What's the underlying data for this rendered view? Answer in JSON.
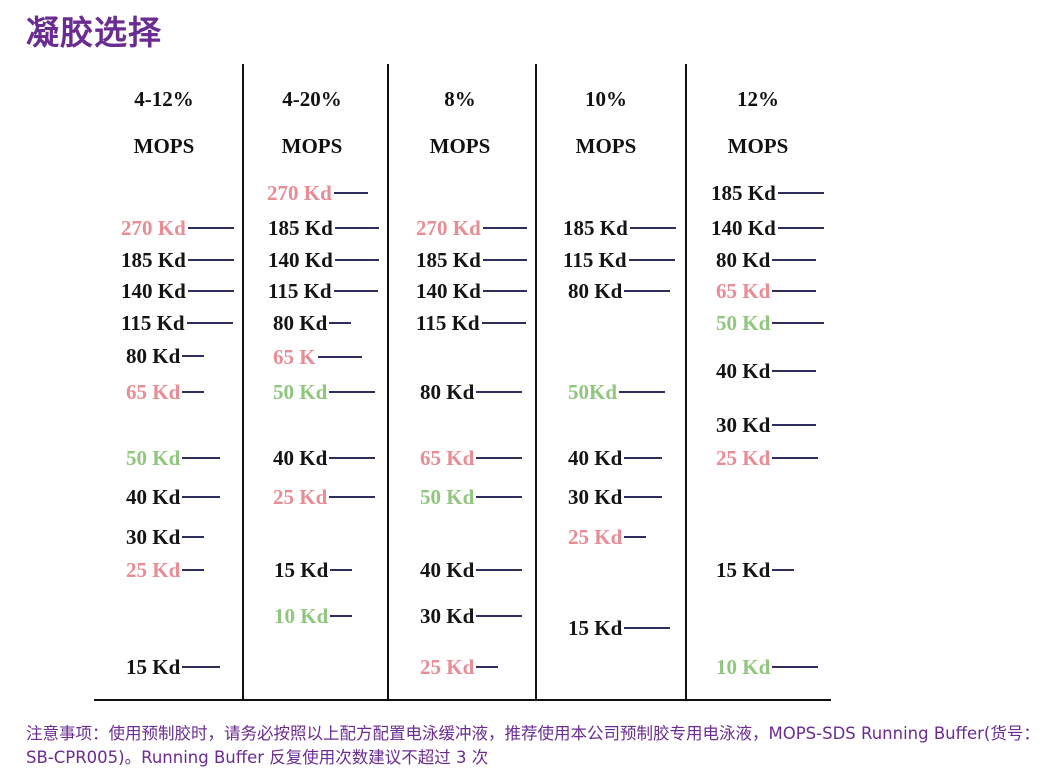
{
  "title": "凝胶选择",
  "columns": [
    {
      "header": "4-12%",
      "type": "MOPS",
      "markers": [
        {
          "label": "270 Kd",
          "color": "pink"
        },
        {
          "label": "185 Kd",
          "color": "black"
        },
        {
          "label": "140 Kd",
          "color": "black"
        },
        {
          "label": "115 Kd",
          "color": "black"
        },
        {
          "label": "80 Kd",
          "color": "black"
        },
        {
          "label": "65 Kd",
          "color": "pink"
        },
        {
          "label": "50 Kd",
          "color": "green"
        },
        {
          "label": "40 Kd",
          "color": "black"
        },
        {
          "label": "30 Kd",
          "color": "black"
        },
        {
          "label": "25 Kd",
          "color": "pink"
        },
        {
          "label": "15 Kd",
          "color": "black"
        }
      ]
    },
    {
      "header": "4-20%",
      "type": "MOPS",
      "markers": [
        {
          "label": "270 Kd",
          "color": "pink"
        },
        {
          "label": "185 Kd",
          "color": "black"
        },
        {
          "label": "140 Kd",
          "color": "black"
        },
        {
          "label": "115 Kd",
          "color": "black"
        },
        {
          "label": "80 Kd",
          "color": "black"
        },
        {
          "label": "65 K",
          "color": "pink"
        },
        {
          "label": "50 Kd",
          "color": "green"
        },
        {
          "label": "40 Kd",
          "color": "black"
        },
        {
          "label": "25 Kd",
          "color": "pink"
        },
        {
          "label": "15 Kd",
          "color": "black"
        },
        {
          "label": "10 Kd",
          "color": "green"
        }
      ]
    },
    {
      "header": "8%",
      "type": "MOPS",
      "markers": [
        {
          "label": "270 Kd",
          "color": "pink"
        },
        {
          "label": "185 Kd",
          "color": "black"
        },
        {
          "label": "140 Kd",
          "color": "black"
        },
        {
          "label": "115 Kd",
          "color": "black"
        },
        {
          "label": "80 Kd",
          "color": "black"
        },
        {
          "label": "65 Kd",
          "color": "pink"
        },
        {
          "label": "50 Kd",
          "color": "green"
        },
        {
          "label": "40 Kd",
          "color": "black"
        },
        {
          "label": "30 Kd",
          "color": "black"
        },
        {
          "label": "25 Kd",
          "color": "pink"
        }
      ]
    },
    {
      "header": "10%",
      "type": "MOPS",
      "markers": [
        {
          "label": "185 Kd",
          "color": "black"
        },
        {
          "label": "115 Kd",
          "color": "black"
        },
        {
          "label": "80 Kd",
          "color": "black"
        },
        {
          "label": "50Kd",
          "color": "green"
        },
        {
          "label": "40 Kd",
          "color": "black"
        },
        {
          "label": "30 Kd",
          "color": "black"
        },
        {
          "label": "25 Kd",
          "color": "pink"
        },
        {
          "label": "15 Kd",
          "color": "black"
        }
      ]
    },
    {
      "header": "12%",
      "type": "MOPS",
      "markers": [
        {
          "label": "185 Kd",
          "color": "black"
        },
        {
          "label": "140 Kd",
          "color": "black"
        },
        {
          "label": "80 Kd",
          "color": "black"
        },
        {
          "label": "65 Kd",
          "color": "pink"
        },
        {
          "label": "50 Kd",
          "color": "green"
        },
        {
          "label": "40 Kd",
          "color": "black"
        },
        {
          "label": "30 Kd",
          "color": "black"
        },
        {
          "label": "25 Kd",
          "color": "pink"
        },
        {
          "label": "15 Kd",
          "color": "black"
        },
        {
          "label": "10 Kd",
          "color": "green"
        }
      ]
    }
  ],
  "note": "注意事项：使用预制胶时，请务必按照以上配方配置电泳缓冲液，推荐使用本公司预制胶专用电泳液，MOPS-SDS Running Buffer(货号：SB-CPR005)。Running Buffer 反复使用次数建议不超过 3 次",
  "colors": {
    "title": "#6b2c91",
    "black": "#141414",
    "pink": "#e88c95",
    "green": "#90c67d",
    "dash": "#2d2d5e"
  }
}
